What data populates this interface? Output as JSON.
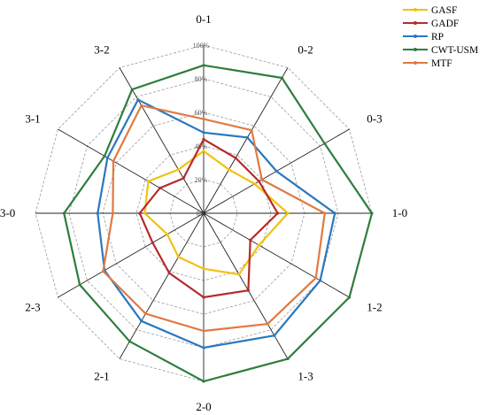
{
  "chart_data": {
    "type": "radar",
    "categories": [
      "0-1",
      "0-2",
      "0-3",
      "1-0",
      "1-2",
      "1-3",
      "2-0",
      "2-1",
      "2-3",
      "3-0",
      "3-1",
      "3-2"
    ],
    "ticks": [
      "0%",
      "20%",
      "40%",
      "60%",
      "80%",
      "100%"
    ],
    "rlim": [
      0,
      100
    ],
    "grid": true,
    "legend_position": "top-right",
    "series": [
      {
        "name": "GASF",
        "color": "#f2c10f",
        "values": [
          37,
          30,
          35,
          50,
          38,
          42,
          33,
          30,
          25,
          35,
          38,
          30
        ]
      },
      {
        "name": "GADF",
        "color": "#b52a2a",
        "values": [
          44,
          38,
          38,
          44,
          32,
          53,
          50,
          41,
          35,
          38,
          30,
          24
        ]
      },
      {
        "name": "RP",
        "color": "#2a78be",
        "values": [
          48,
          52,
          50,
          78,
          80,
          84,
          80,
          74,
          68,
          63,
          66,
          78
        ]
      },
      {
        "name": "CWT-USM",
        "color": "#2e7d3c",
        "values": [
          88,
          93,
          83,
          100,
          100,
          100,
          100,
          88,
          85,
          83,
          68,
          85
        ]
      },
      {
        "name": "MTF",
        "color": "#e07a43",
        "values": [
          56,
          57,
          40,
          72,
          77,
          76,
          70,
          69,
          69,
          54,
          62,
          74
        ]
      }
    ]
  }
}
